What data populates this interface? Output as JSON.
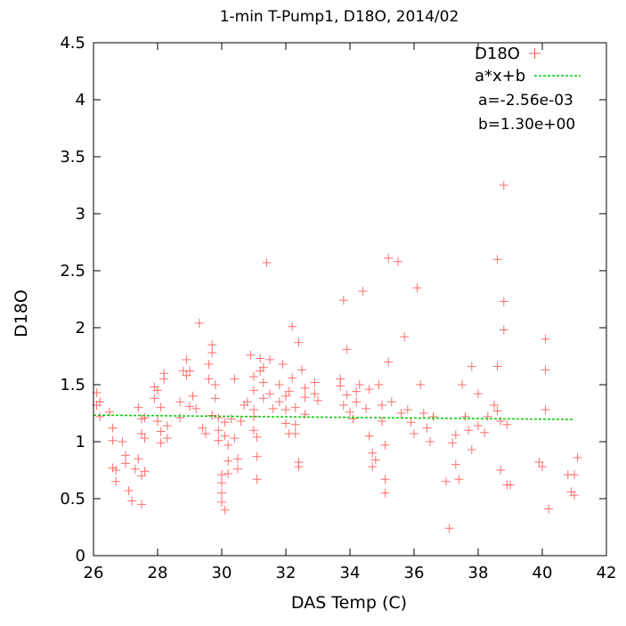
{
  "chart_data": {
    "type": "scatter",
    "title": "1-min T-Pump1, D18O, 2014/02",
    "xlabel": "DAS Temp (C)",
    "ylabel": "D18O",
    "xlim": [
      26,
      42
    ],
    "ylim": [
      0,
      4.5
    ],
    "xticks": [
      "26",
      "28",
      "30",
      "32",
      "34",
      "36",
      "38",
      "40",
      "42"
    ],
    "yticks": [
      "0",
      "0.5",
      "1",
      "1.5",
      "2",
      "2.5",
      "3",
      "3.5",
      "4",
      "4.5"
    ],
    "grid": false,
    "legend_position": "top-right",
    "series": [
      {
        "name": "D18O",
        "marker": "plus",
        "color": "#ff5555",
        "points": [
          [
            26.1,
            1.43
          ],
          [
            26.1,
            1.32
          ],
          [
            26.2,
            1.35
          ],
          [
            26.2,
            1.22
          ],
          [
            26.5,
            1.26
          ],
          [
            26.6,
            1.12
          ],
          [
            26.6,
            1.01
          ],
          [
            26.6,
            0.77
          ],
          [
            26.7,
            0.75
          ],
          [
            26.7,
            0.65
          ],
          [
            26.9,
            1.0
          ],
          [
            27.0,
            0.88
          ],
          [
            27.0,
            0.81
          ],
          [
            27.1,
            0.57
          ],
          [
            27.2,
            0.48
          ],
          [
            27.3,
            0.76
          ],
          [
            27.4,
            0.85
          ],
          [
            27.4,
            1.3
          ],
          [
            27.5,
            1.07
          ],
          [
            27.5,
            1.2
          ],
          [
            27.5,
            0.7
          ],
          [
            27.5,
            0.45
          ],
          [
            27.6,
            1.21
          ],
          [
            27.6,
            1.03
          ],
          [
            27.6,
            0.74
          ],
          [
            27.9,
            1.48
          ],
          [
            27.9,
            1.38
          ],
          [
            28.0,
            1.45
          ],
          [
            28.0,
            1.18
          ],
          [
            28.1,
            1.3
          ],
          [
            28.1,
            1.09
          ],
          [
            28.1,
            0.99
          ],
          [
            28.2,
            1.55
          ],
          [
            28.2,
            1.6
          ],
          [
            28.3,
            1.14
          ],
          [
            28.3,
            1.03
          ],
          [
            28.7,
            1.21
          ],
          [
            28.7,
            1.35
          ],
          [
            28.8,
            1.62
          ],
          [
            28.9,
            1.72
          ],
          [
            28.9,
            1.58
          ],
          [
            29.0,
            1.62
          ],
          [
            29.0,
            1.31
          ],
          [
            29.1,
            1.4
          ],
          [
            29.2,
            1.29
          ],
          [
            29.3,
            2.04
          ],
          [
            29.4,
            1.12
          ],
          [
            29.5,
            1.07
          ],
          [
            29.6,
            1.55
          ],
          [
            29.6,
            1.68
          ],
          [
            29.7,
            1.85
          ],
          [
            29.7,
            1.78
          ],
          [
            29.7,
            1.23
          ],
          [
            29.8,
            1.5
          ],
          [
            29.8,
            1.38
          ],
          [
            29.9,
            1.21
          ],
          [
            29.9,
            1.1
          ],
          [
            29.9,
            1.01
          ],
          [
            30.0,
            0.71
          ],
          [
            30.0,
            0.64
          ],
          [
            30.0,
            0.55
          ],
          [
            30.0,
            0.47
          ],
          [
            30.1,
            0.4
          ],
          [
            30.1,
            1.05
          ],
          [
            30.1,
            1.17
          ],
          [
            30.2,
            0.83
          ],
          [
            30.2,
            0.97
          ],
          [
            30.2,
            0.72
          ],
          [
            30.3,
            1.2
          ],
          [
            30.4,
            1.55
          ],
          [
            30.4,
            1.03
          ],
          [
            30.5,
            0.85
          ],
          [
            30.5,
            0.76
          ],
          [
            30.6,
            1.18
          ],
          [
            30.7,
            1.32
          ],
          [
            30.8,
            1.35
          ],
          [
            30.9,
            1.76
          ],
          [
            31.0,
            1.57
          ],
          [
            31.0,
            1.45
          ],
          [
            31.0,
            1.28
          ],
          [
            31.0,
            1.22
          ],
          [
            31.0,
            1.1
          ],
          [
            31.1,
            1.04
          ],
          [
            31.1,
            0.87
          ],
          [
            31.1,
            0.67
          ],
          [
            31.2,
            1.73
          ],
          [
            31.2,
            1.62
          ],
          [
            31.3,
            1.52
          ],
          [
            31.3,
            1.38
          ],
          [
            31.3,
            1.65
          ],
          [
            31.4,
            2.57
          ],
          [
            31.5,
            1.72
          ],
          [
            31.5,
            1.42
          ],
          [
            31.6,
            1.29
          ],
          [
            31.8,
            1.5
          ],
          [
            31.8,
            1.35
          ],
          [
            31.9,
            1.68
          ],
          [
            32.0,
            1.4
          ],
          [
            32.0,
            1.28
          ],
          [
            32.0,
            1.16
          ],
          [
            32.1,
            1.07
          ],
          [
            32.1,
            1.44
          ],
          [
            32.2,
            2.01
          ],
          [
            32.2,
            1.56
          ],
          [
            32.3,
            1.3
          ],
          [
            32.3,
            1.15
          ],
          [
            32.3,
            1.07
          ],
          [
            32.4,
            1.87
          ],
          [
            32.4,
            0.82
          ],
          [
            32.4,
            0.78
          ],
          [
            32.5,
            1.63
          ],
          [
            32.6,
            1.47
          ],
          [
            32.6,
            1.39
          ],
          [
            32.6,
            1.24
          ],
          [
            32.9,
            1.52
          ],
          [
            32.9,
            1.42
          ],
          [
            33.0,
            1.36
          ],
          [
            33.7,
            1.49
          ],
          [
            33.7,
            1.55
          ],
          [
            33.8,
            2.24
          ],
          [
            33.8,
            1.32
          ],
          [
            33.9,
            1.41
          ],
          [
            33.9,
            1.81
          ],
          [
            34.0,
            1.26
          ],
          [
            34.1,
            1.2
          ],
          [
            34.2,
            1.44
          ],
          [
            34.2,
            1.35
          ],
          [
            34.3,
            1.5
          ],
          [
            34.4,
            2.32
          ],
          [
            34.5,
            1.29
          ],
          [
            34.6,
            1.46
          ],
          [
            34.6,
            1.05
          ],
          [
            34.7,
            0.9
          ],
          [
            34.7,
            0.78
          ],
          [
            34.8,
            0.84
          ],
          [
            34.9,
            1.5
          ],
          [
            35.0,
            1.32
          ],
          [
            35.0,
            1.18
          ],
          [
            35.1,
            0.97
          ],
          [
            35.1,
            0.67
          ],
          [
            35.1,
            0.55
          ],
          [
            35.2,
            1.7
          ],
          [
            35.2,
            2.61
          ],
          [
            35.3,
            1.35
          ],
          [
            35.5,
            2.58
          ],
          [
            35.6,
            1.25
          ],
          [
            35.7,
            1.92
          ],
          [
            35.8,
            1.28
          ],
          [
            35.9,
            1.17
          ],
          [
            36.0,
            1.07
          ],
          [
            36.1,
            2.35
          ],
          [
            36.2,
            1.5
          ],
          [
            36.3,
            1.25
          ],
          [
            36.4,
            1.12
          ],
          [
            36.5,
            1.0
          ],
          [
            36.6,
            1.22
          ],
          [
            37.0,
            0.65
          ],
          [
            37.1,
            0.24
          ],
          [
            37.2,
            0.99
          ],
          [
            37.3,
            1.06
          ],
          [
            37.3,
            0.8
          ],
          [
            37.4,
            0.67
          ],
          [
            37.5,
            1.5
          ],
          [
            37.6,
            1.22
          ],
          [
            37.7,
            1.1
          ],
          [
            37.8,
            1.66
          ],
          [
            37.8,
            0.93
          ],
          [
            38.0,
            1.42
          ],
          [
            38.0,
            1.14
          ],
          [
            38.2,
            1.08
          ],
          [
            38.3,
            1.22
          ],
          [
            38.5,
            1.32
          ],
          [
            38.6,
            2.6
          ],
          [
            38.6,
            1.66
          ],
          [
            38.6,
            1.27
          ],
          [
            38.7,
            1.18
          ],
          [
            38.7,
            0.75
          ],
          [
            38.8,
            3.25
          ],
          [
            38.8,
            2.23
          ],
          [
            38.8,
            1.98
          ],
          [
            38.9,
            1.15
          ],
          [
            38.9,
            0.62
          ],
          [
            39.0,
            0.62
          ],
          [
            39.9,
            0.82
          ],
          [
            40.0,
            0.78
          ],
          [
            40.1,
            1.9
          ],
          [
            40.1,
            1.63
          ],
          [
            40.1,
            1.28
          ],
          [
            40.2,
            0.41
          ],
          [
            40.8,
            0.71
          ],
          [
            40.9,
            0.56
          ],
          [
            41.0,
            0.71
          ],
          [
            41.0,
            0.53
          ],
          [
            41.1,
            0.86
          ]
        ]
      },
      {
        "name": "a*x+b",
        "type": "line",
        "style": "dashed",
        "color": "#00cc00",
        "x": [
          26.0,
          41.0
        ],
        "y": [
          1.233,
          1.195
        ]
      }
    ],
    "annotations": [
      "a=-2.56e-03",
      "b=1.30e+00"
    ]
  }
}
